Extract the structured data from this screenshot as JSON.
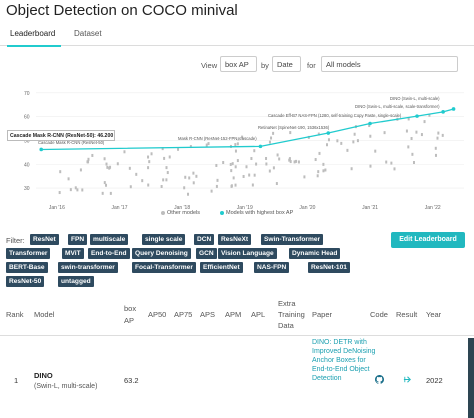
{
  "page": {
    "title": "Object Detection on COCO minival"
  },
  "tabs": [
    {
      "label": "Leaderboard",
      "active": true
    },
    {
      "label": "Dataset",
      "active": false
    }
  ],
  "view_bar": {
    "view_label": "View",
    "metric_value": "box AP",
    "by_label": "by",
    "by_value": "Date",
    "for_label": "for",
    "for_value": "All models"
  },
  "chart_data": {
    "type": "scatter",
    "y_ticks": [
      "70",
      "60",
      "50",
      "40",
      "30"
    ],
    "ylim": [
      25,
      72
    ],
    "x_ticks": [
      "Jan '16",
      "Jan '17",
      "Jan '18",
      "Jan '19",
      "Jan '20",
      "Jan '21",
      "Jan '22"
    ],
    "xlim": [
      "2015-09",
      "2022-07"
    ],
    "legend": [
      "Other models",
      "Models with highest box AP"
    ],
    "colors": {
      "sota": "#21cbce",
      "other": "#bdbdbd"
    },
    "sota_series": [
      {
        "x": "2015-10",
        "y": 46.2
      },
      {
        "x": "2019-04",
        "y": 47.5
      },
      {
        "x": "2020-05",
        "y": 53.1
      },
      {
        "x": "2021-01",
        "y": 57.1
      },
      {
        "x": "2021-10",
        "y": 60.2
      },
      {
        "x": "2022-03",
        "y": 62.0
      },
      {
        "x": "2022-05",
        "y": 63.2
      }
    ],
    "annotations": [
      "DINO (Swin-L, multi-scale)",
      "DINO (Swin-L, multi-scale, scale-transformer)",
      "Cascade Eff-B7 NAS-FPN (1280, self-training Copy Paste, single-scale)",
      "RetinaNet (SpineNet-190, 1536x1536)",
      "Mask R-CNN (ResNet-152-FPN, cascade)",
      "Cascade Mask R-CNN (ResNet-50)"
    ],
    "tooltip": "Cascade Mask R-CNN (ResNet-50): 46.200"
  },
  "filters": {
    "label": "Filter:",
    "chips": [
      "ResNet",
      "FPN",
      "multiscale",
      "single scale",
      "DCN",
      "ResNeXt",
      "Swin-Transformer",
      "Transformer",
      "MViT",
      "End-to-End",
      "Query Denoising",
      "GCN",
      "Vision Language",
      "Dynamic Head",
      "BERT-Base",
      "swin-transformer",
      "Focal-Transformer",
      "EfficientNet",
      "NAS-FPN",
      "ResNet-101",
      "ResNet-50",
      "untagged"
    ]
  },
  "edit_button": "Edit Leaderboard",
  "table": {
    "headers": {
      "rank": "Rank",
      "model": "Model",
      "box_ap_1": "box",
      "box_ap_2": "AP",
      "ap50": "AP50",
      "ap75": "AP75",
      "aps": "APS",
      "apm": "APM",
      "apl": "APL",
      "extra_1": "Extra",
      "extra_2": "Training",
      "extra_3": "Data",
      "paper": "Paper",
      "code": "Code",
      "result": "Result",
      "year": "Year"
    },
    "rows": [
      {
        "rank": "1",
        "model": "DINO",
        "model_sub": "(Swin-L, multi-scale)",
        "box_ap": "63.2",
        "paper": "DINO: DETR with Improved DeNoising Anchor Boxes for End-to-End Object Detection",
        "year": "2022"
      }
    ]
  }
}
